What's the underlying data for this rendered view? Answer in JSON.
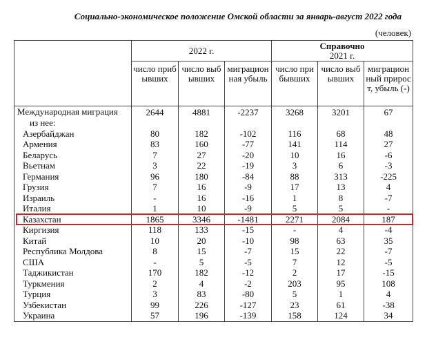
{
  "title": "Социально-экономическое положение Омской области за январь-август 2022 года",
  "unit": "(человек)",
  "header": {
    "year_main": "2022 г.",
    "reference": "Справочно",
    "year_ref": "2021 г.",
    "columns": [
      "число прибывших",
      "число выбывших",
      "миграционная убыль",
      "число прибывших",
      "число выбывших",
      "миграционный прирост, убыль (-)"
    ]
  },
  "table": {
    "total": {
      "label": "Международная миграция",
      "values": [
        2644,
        4881,
        -2237,
        3268,
        3201,
        67
      ]
    },
    "subheading": "из нее:",
    "rows": [
      [
        "Азербайджан",
        80,
        182,
        -102,
        116,
        68,
        48
      ],
      [
        "Армения",
        83,
        160,
        -77,
        141,
        114,
        27
      ],
      [
        "Беларусь",
        7,
        27,
        -20,
        10,
        16,
        -6
      ],
      [
        "Вьетнам",
        3,
        22,
        -19,
        3,
        6,
        -3
      ],
      [
        "Германия",
        96,
        180,
        -84,
        88,
        313,
        -225
      ],
      [
        "Грузия",
        7,
        16,
        -9,
        17,
        13,
        4
      ],
      [
        "Израиль",
        "-",
        16,
        -16,
        1,
        8,
        -7
      ],
      [
        "Италия",
        1,
        10,
        -9,
        5,
        5,
        "-"
      ],
      [
        "Казахстан",
        1865,
        3346,
        -1481,
        2271,
        2084,
        187
      ],
      [
        "Киргизия",
        118,
        133,
        -15,
        "-",
        4,
        -4
      ],
      [
        "Китай",
        10,
        20,
        -10,
        98,
        63,
        35
      ],
      [
        "Республика Молдова",
        8,
        15,
        -7,
        15,
        22,
        -7
      ],
      [
        "США",
        "-",
        5,
        -5,
        7,
        12,
        -5
      ],
      [
        "Таджикистан",
        170,
        182,
        -12,
        2,
        17,
        -15
      ],
      [
        "Туркмения",
        2,
        4,
        -2,
        203,
        95,
        108
      ],
      [
        "Турция",
        3,
        83,
        -80,
        5,
        1,
        4
      ],
      [
        "Узбекистан",
        99,
        226,
        -127,
        23,
        61,
        -38
      ],
      [
        "Украина",
        57,
        196,
        -139,
        158,
        124,
        34
      ]
    ],
    "highlight_row": 8
  }
}
